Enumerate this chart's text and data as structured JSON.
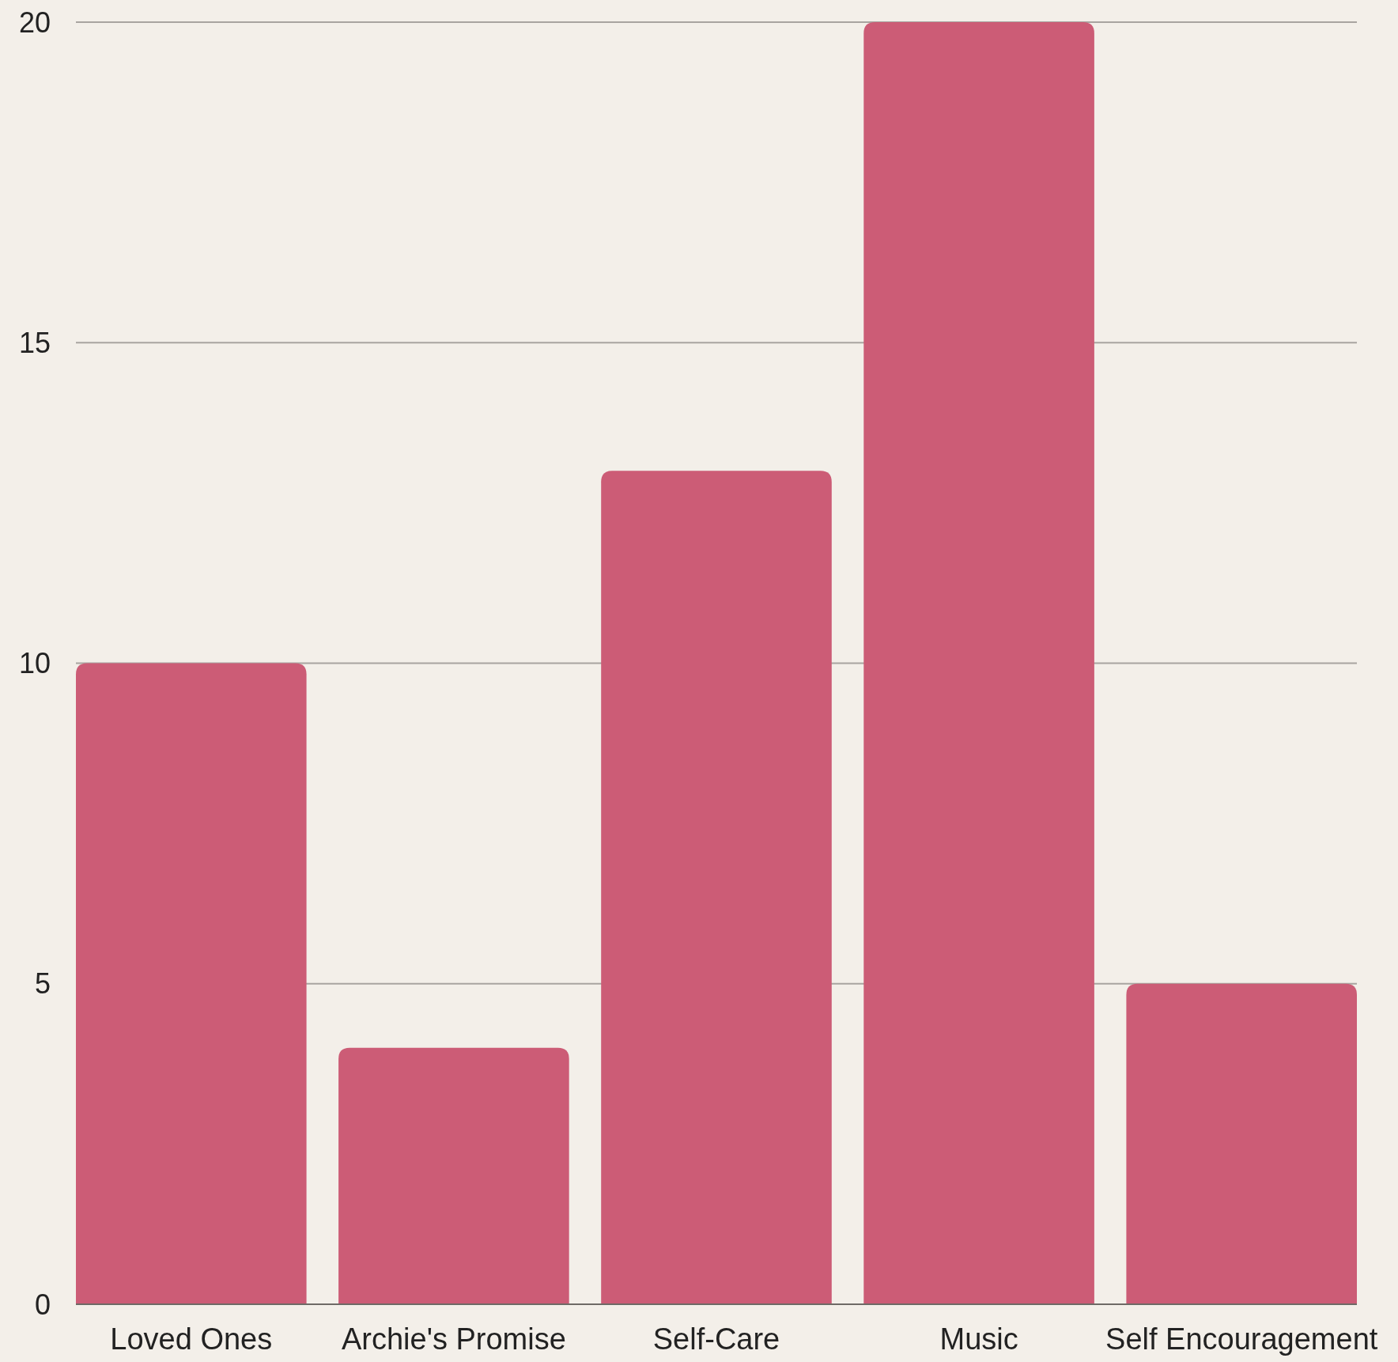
{
  "chart_data": {
    "type": "bar",
    "categories": [
      "Loved Ones",
      "Archie's Promise",
      "Self-Care",
      "Music",
      "Self Encouragement"
    ],
    "values": [
      10,
      4,
      13,
      20,
      5
    ],
    "color": "#cc5c76",
    "ylim": [
      0,
      20
    ],
    "yticks": [
      0,
      5,
      10,
      15,
      20
    ],
    "grid": "y"
  }
}
